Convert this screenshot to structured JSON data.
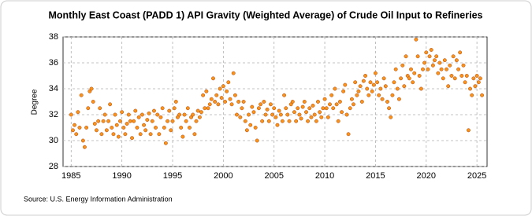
{
  "chart_data": {
    "type": "scatter",
    "title": "Monthly East Coast (PADD 1) API Gravity (Weighted Average) of Crude Oil Input to Refineries",
    "y_label": "Degree",
    "source": "Source: U.S. Energy Information Administration",
    "xlim": [
      1984.2,
      2026
    ],
    "xticks": [
      1985,
      1990,
      1995,
      2000,
      2005,
      2010,
      2015,
      2020,
      2025
    ],
    "ylim": [
      28,
      38
    ],
    "yticks": [
      28,
      30,
      32,
      34,
      36,
      38
    ],
    "grid": true,
    "color": "#f7941d",
    "series": [
      {
        "name": "API Gravity",
        "color": "#f7941d",
        "x": [
          1985,
          1985.17,
          1985.33,
          1985.5,
          1985.67,
          1985.83,
          1986,
          1986.17,
          1986.33,
          1986.5,
          1986.67,
          1986.83,
          1987,
          1987.17,
          1987.33,
          1987.5,
          1987.67,
          1987.83,
          1988,
          1988.17,
          1988.33,
          1988.5,
          1988.67,
          1988.83,
          1989,
          1989.17,
          1989.33,
          1989.5,
          1989.67,
          1989.83,
          1990,
          1990.17,
          1990.33,
          1990.5,
          1990.67,
          1990.83,
          1991,
          1991.17,
          1991.33,
          1991.5,
          1991.67,
          1991.83,
          1992,
          1992.17,
          1992.33,
          1992.5,
          1992.67,
          1992.83,
          1993,
          1993.17,
          1993.33,
          1993.5,
          1993.67,
          1993.83,
          1994,
          1994.17,
          1994.33,
          1994.5,
          1994.67,
          1994.83,
          1995,
          1995.17,
          1995.33,
          1995.5,
          1995.67,
          1995.83,
          1996,
          1996.17,
          1996.33,
          1996.5,
          1996.67,
          1996.83,
          1997,
          1997.17,
          1997.33,
          1997.5,
          1997.67,
          1997.83,
          1998,
          1998.17,
          1998.33,
          1998.5,
          1998.67,
          1998.83,
          1999,
          1999.17,
          1999.33,
          1999.5,
          1999.67,
          1999.83,
          2000,
          2000.17,
          2000.33,
          2000.5,
          2000.67,
          2000.83,
          2001,
          2001.17,
          2001.33,
          2001.5,
          2001.67,
          2001.83,
          2002,
          2002.17,
          2002.33,
          2002.5,
          2002.67,
          2002.83,
          2003,
          2003.17,
          2003.33,
          2003.5,
          2003.67,
          2003.83,
          2004,
          2004.17,
          2004.33,
          2004.5,
          2004.67,
          2004.83,
          2005,
          2005.17,
          2005.33,
          2005.5,
          2005.67,
          2005.83,
          2006,
          2006.17,
          2006.33,
          2006.5,
          2006.67,
          2006.83,
          2007,
          2007.17,
          2007.33,
          2007.5,
          2007.67,
          2007.83,
          2008,
          2008.17,
          2008.33,
          2008.5,
          2008.67,
          2008.83,
          2009,
          2009.17,
          2009.33,
          2009.5,
          2009.67,
          2009.83,
          2010,
          2010.17,
          2010.33,
          2010.5,
          2010.67,
          2010.83,
          2011,
          2011.17,
          2011.33,
          2011.5,
          2011.67,
          2011.83,
          2012,
          2012.17,
          2012.33,
          2012.5,
          2012.67,
          2012.83,
          2013,
          2013.17,
          2013.33,
          2013.5,
          2013.67,
          2013.83,
          2014,
          2014.17,
          2014.33,
          2014.5,
          2014.67,
          2014.83,
          2015,
          2015.17,
          2015.33,
          2015.5,
          2015.67,
          2015.83,
          2016,
          2016.17,
          2016.33,
          2016.5,
          2016.67,
          2016.83,
          2017,
          2017.17,
          2017.33,
          2017.5,
          2017.67,
          2017.83,
          2018,
          2018.17,
          2018.33,
          2018.5,
          2018.67,
          2018.83,
          2019,
          2019.17,
          2019.33,
          2019.5,
          2019.67,
          2019.83,
          2020,
          2020.17,
          2020.33,
          2020.5,
          2020.67,
          2020.83,
          2021,
          2021.17,
          2021.33,
          2021.5,
          2021.67,
          2021.83,
          2022,
          2022.17,
          2022.33,
          2022.5,
          2022.67,
          2022.83,
          2023,
          2023.17,
          2023.33,
          2023.5,
          2023.67,
          2023.83,
          2024,
          2024.17,
          2024.33,
          2024.5,
          2024.67,
          2024.83,
          2025,
          2025.17,
          2025.33,
          2025.5
        ],
        "values": [
          32,
          30.8,
          31.2,
          30.5,
          32.2,
          31,
          33.5,
          30,
          29.5,
          31,
          32.5,
          33.8,
          34,
          33,
          31.3,
          30.8,
          31.5,
          32.5,
          30.5,
          31.5,
          32,
          30.8,
          31.5,
          32.8,
          31,
          30.5,
          32,
          31.2,
          30.3,
          31.5,
          32.2,
          31,
          30.5,
          31.3,
          32,
          31.5,
          30.2,
          31.5,
          32.3,
          31,
          31.8,
          30.5,
          32,
          31.2,
          30.8,
          31.6,
          32.1,
          30.5,
          31.5,
          32.3,
          31,
          32,
          30.5,
          31.8,
          32.5,
          31,
          29.8,
          31.5,
          32.3,
          30.8,
          31.5,
          32.5,
          33,
          31.8,
          32,
          31,
          30.3,
          32,
          31.5,
          32.5,
          31,
          31.8,
          32,
          30.5,
          31.5,
          32.3,
          31.8,
          32.2,
          33.5,
          32.5,
          33.8,
          32.5,
          32.8,
          33.2,
          34.8,
          33,
          33.5,
          32.8,
          34,
          33.3,
          34.2,
          33,
          33.8,
          34.5,
          33.2,
          32.8,
          35.2,
          33.5,
          32,
          33,
          31.8,
          32.5,
          33,
          31.5,
          30.8,
          32,
          31.2,
          32.6,
          32.2,
          31,
          30,
          32.5,
          32.8,
          31.5,
          33,
          32,
          32.4,
          31.5,
          32.8,
          32,
          32.5,
          31.8,
          31.2,
          32.3,
          32,
          31.5,
          33.5,
          32.5,
          32,
          31.5,
          32.8,
          33,
          32.2,
          31.5,
          32.5,
          32,
          31.7,
          32.6,
          33,
          32.2,
          31.5,
          32.5,
          31.8,
          32.7,
          32,
          31.5,
          33,
          32.2,
          31.8,
          32.5,
          33.2,
          32.5,
          31.8,
          32.8,
          33.5,
          32.5,
          34,
          32.8,
          31.5,
          33,
          32.2,
          33.8,
          34.3,
          32,
          30.5,
          32.5,
          33.2,
          32.8,
          34.5,
          33.5,
          33.8,
          34.2,
          33,
          34.6,
          35,
          34,
          33.5,
          34.5,
          33.8,
          34.3,
          35.2,
          34.5,
          33.5,
          34,
          33.2,
          34.8,
          34.2,
          33,
          32.5,
          31.8,
          33.5,
          34.5,
          35.5,
          34,
          33.2,
          34.8,
          35.8,
          34.2,
          36.5,
          35,
          34.8,
          35.5,
          34.5,
          35.2,
          37.8,
          36.5,
          35,
          34,
          35.5,
          36,
          36.8,
          35.5,
          36.5,
          37,
          35.8,
          36.2,
          36.5,
          35.2,
          36,
          35.5,
          34.8,
          36.2,
          35.5,
          34.2,
          35.8,
          35,
          36.5,
          34.8,
          36.2,
          35.5,
          36.8,
          35,
          35.8,
          34.5,
          35,
          30.8,
          34,
          33.5,
          34.8,
          34.2,
          35,
          34.5,
          34.8,
          33.5
        ]
      }
    ]
  }
}
